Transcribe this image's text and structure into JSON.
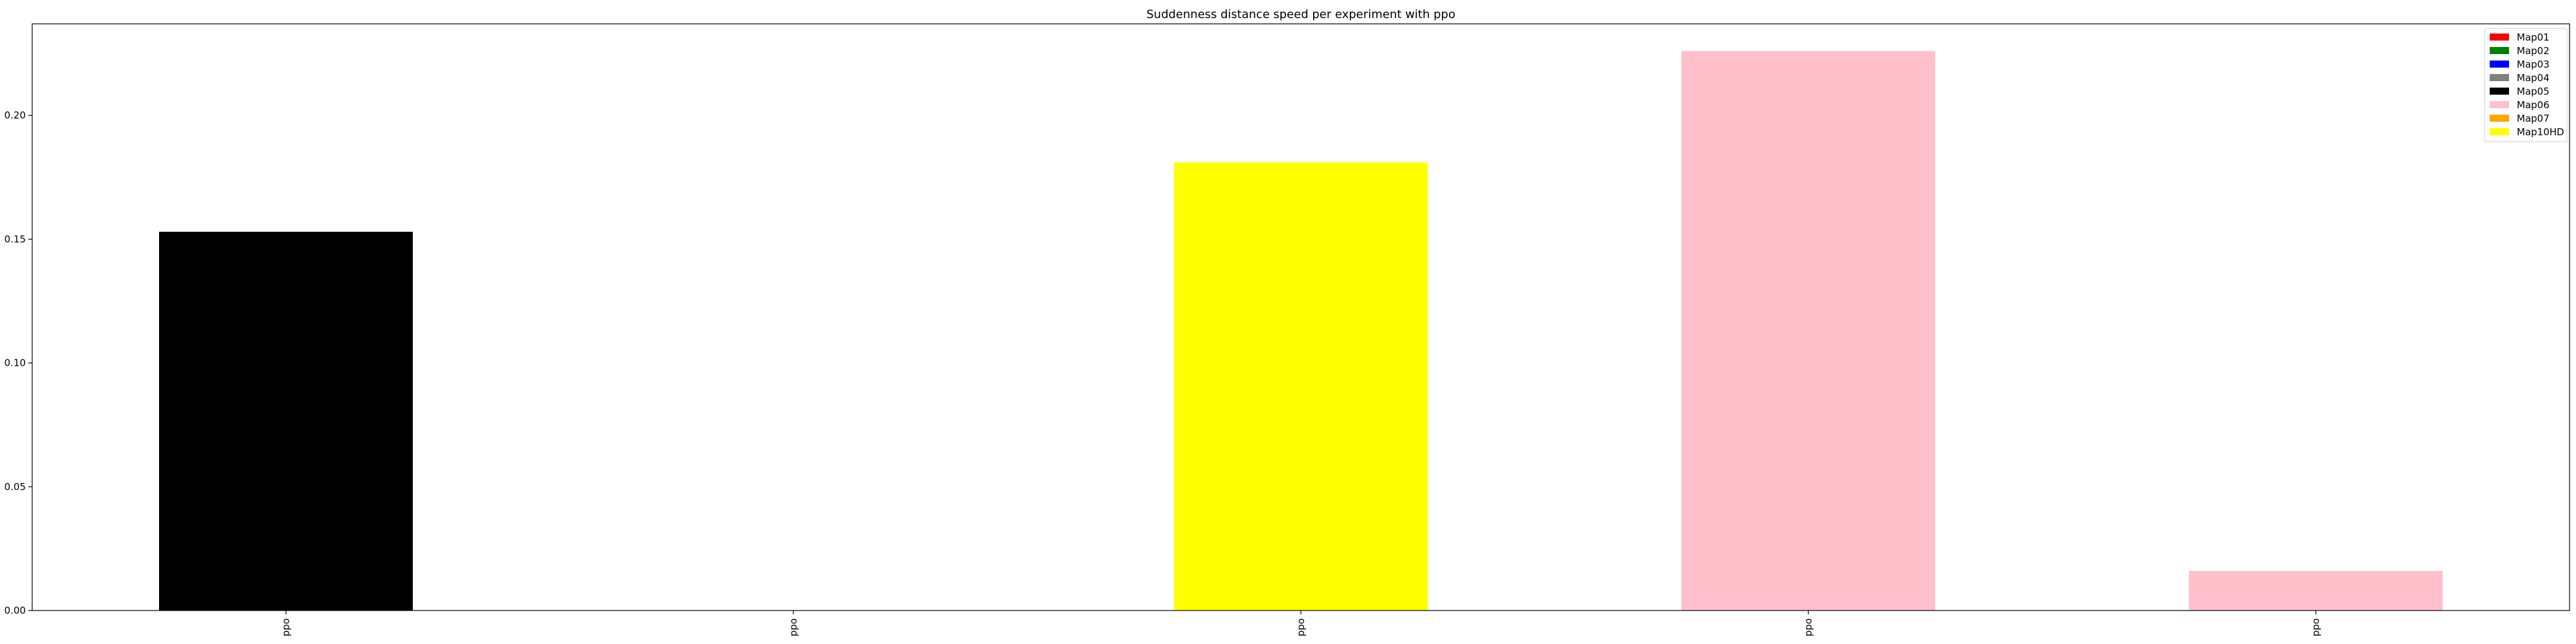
{
  "chart_data": {
    "type": "bar",
    "title": "Suddenness distance speed per experiment with ppo",
    "xlabel": "",
    "ylabel": "",
    "categories": [
      "ppo",
      "ppo",
      "ppo",
      "ppo",
      "ppo"
    ],
    "values": [
      0.153,
      0.0,
      0.181,
      0.226,
      0.016
    ],
    "bar_colors": [
      "#000000",
      "#000000",
      "#ffff00",
      "#ffc0cb",
      "#ffc0cb"
    ],
    "ylim": [
      0,
      0.237
    ],
    "yticks": [
      0.0,
      0.05,
      0.1,
      0.15,
      0.2
    ],
    "ytick_labels": [
      "0.00",
      "0.05",
      "0.10",
      "0.15",
      "0.20"
    ],
    "grid": false,
    "legend_position": "top-right",
    "legend": [
      {
        "label": "Map01",
        "color": "#ff0000"
      },
      {
        "label": "Map02",
        "color": "#008000"
      },
      {
        "label": "Map03",
        "color": "#0000ff"
      },
      {
        "label": "Map04",
        "color": "#808080"
      },
      {
        "label": "Map05",
        "color": "#000000"
      },
      {
        "label": "Map06",
        "color": "#ffc0cb"
      },
      {
        "label": "Map07",
        "color": "#ffa500"
      },
      {
        "label": "Map10HD",
        "color": "#ffff00"
      }
    ]
  }
}
